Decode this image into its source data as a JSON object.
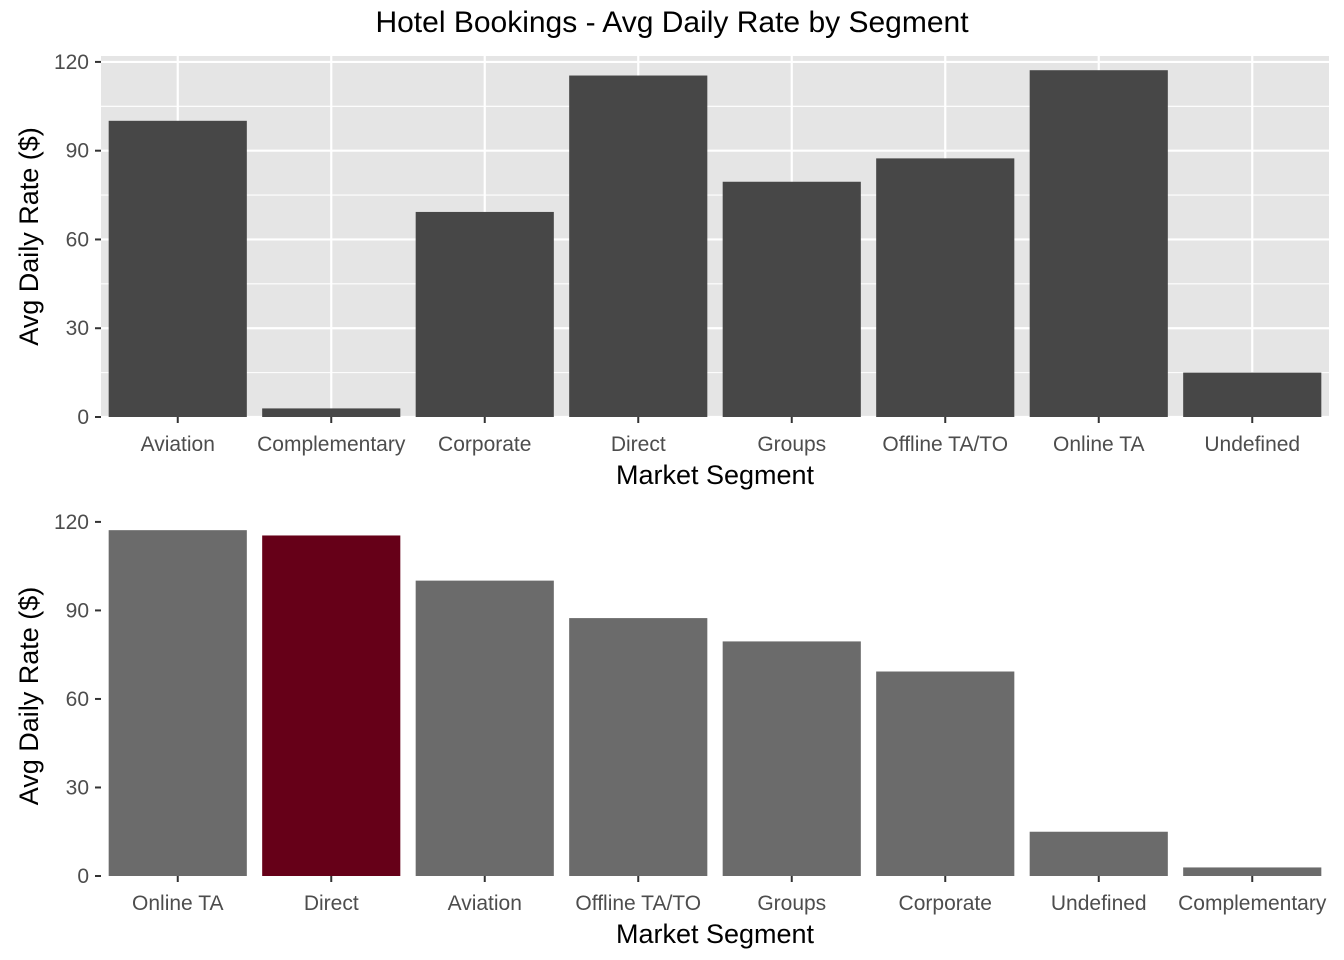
{
  "title": "Hotel Bookings - Avg Daily Rate by Segment",
  "colors": {
    "panel_background": "#e5e5e5",
    "gridline": "#ffffff",
    "bar_default_top": "#474747",
    "bar_default_bottom": "#6b6b6b",
    "bar_highlight": "#660018"
  },
  "chart_data": [
    {
      "type": "bar",
      "title": "",
      "xlabel": "Market Segment",
      "ylabel": "Avg Daily Rate ($)",
      "ylim": [
        0,
        122
      ],
      "yticks": [
        0,
        30,
        60,
        90,
        120
      ],
      "grid": true,
      "panel_background": true,
      "categories": [
        "Aviation",
        "Complementary",
        "Corporate",
        "Direct",
        "Groups",
        "Offline TA/TO",
        "Online TA",
        "Undefined"
      ],
      "values": [
        100.1,
        2.9,
        69.3,
        115.4,
        79.5,
        87.4,
        117.2,
        15.0
      ]
    },
    {
      "type": "bar",
      "title": "",
      "xlabel": "Market Segment",
      "ylabel": "Avg Daily Rate ($)",
      "ylim": [
        0,
        122
      ],
      "yticks": [
        0,
        30,
        60,
        90,
        120
      ],
      "grid": false,
      "panel_background": false,
      "highlight": "Direct",
      "categories": [
        "Online TA",
        "Direct",
        "Aviation",
        "Offline TA/TO",
        "Groups",
        "Corporate",
        "Undefined",
        "Complementary"
      ],
      "values": [
        117.2,
        115.4,
        100.1,
        87.4,
        79.5,
        69.3,
        15.0,
        2.9
      ]
    }
  ]
}
